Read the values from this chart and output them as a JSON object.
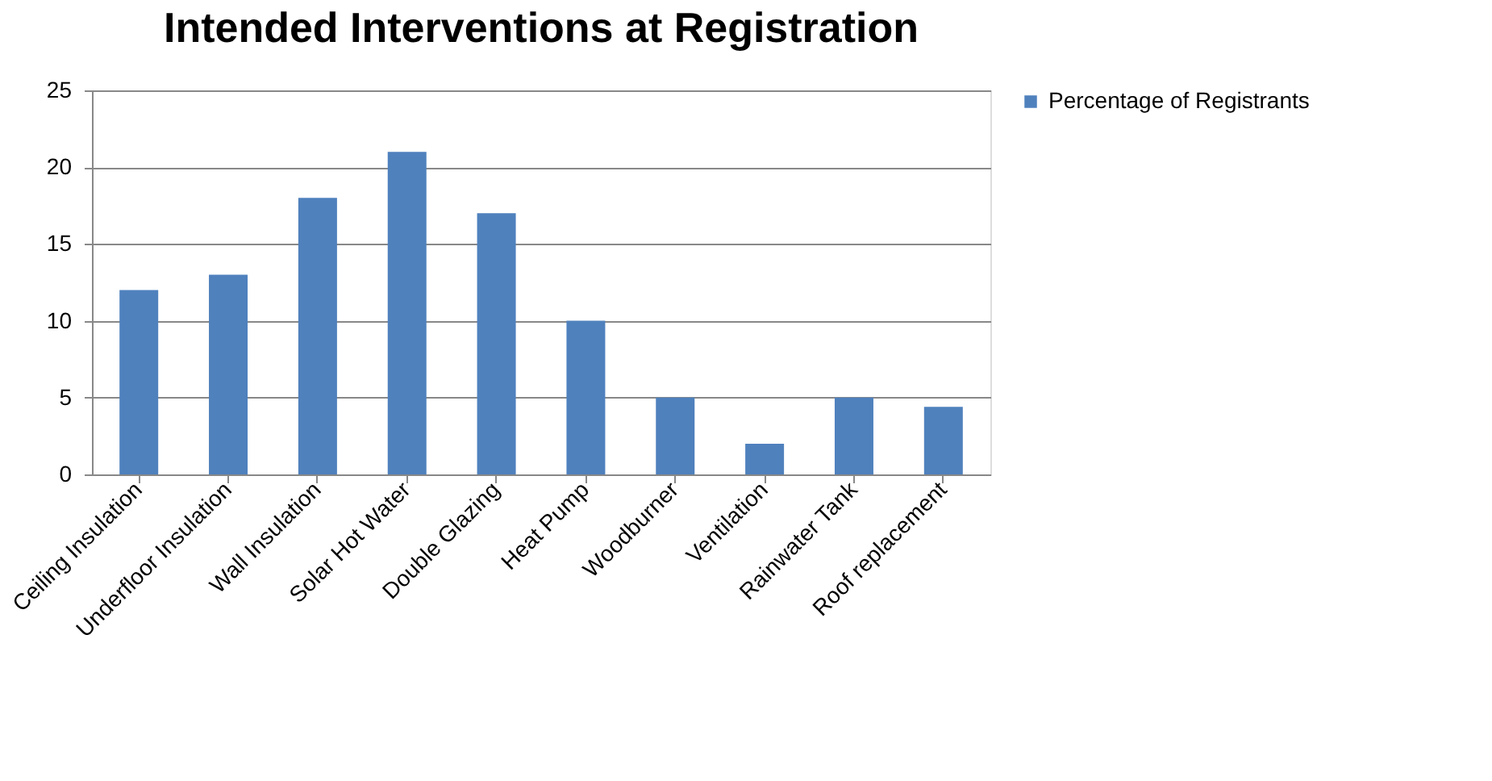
{
  "chart_data": {
    "type": "bar",
    "title": "Intended Interventions at Registration",
    "categories": [
      "Ceiling Insulation",
      "Underfloor Insulation",
      "Wall Insulation",
      "Solar Hot Water",
      "Double Glazing",
      "Heat Pump",
      "Woodburner",
      "Ventilation",
      "Rainwater Tank",
      "Roof replacement"
    ],
    "series": [
      {
        "name": "Percentage of Registrants",
        "color": "#4f81bd",
        "values": [
          12,
          13,
          18,
          21,
          17,
          10,
          5,
          2,
          5,
          4.4
        ]
      }
    ],
    "ylim": [
      0,
      25
    ],
    "yticks": [
      0,
      5,
      10,
      15,
      20,
      25
    ],
    "grid": "y",
    "legend": "right"
  }
}
